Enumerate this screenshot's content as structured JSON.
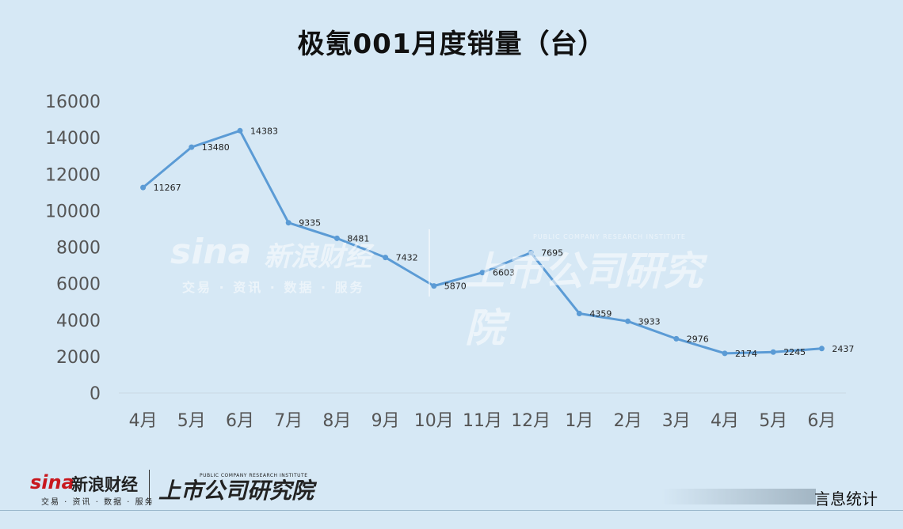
{
  "chart_data": {
    "type": "line",
    "title": "极氪001月度销量（台）",
    "categories": [
      "4月",
      "5月",
      "6月",
      "7月",
      "8月",
      "9月",
      "10月",
      "11月",
      "12月",
      "1月",
      "2月",
      "3月",
      "4月",
      "5月",
      "6月"
    ],
    "series": [
      {
        "values": [
          11267,
          13480,
          14383,
          9335,
          8481,
          7432,
          5870,
          6603,
          7695,
          4359,
          3933,
          2976,
          2174,
          2245,
          2437
        ]
      }
    ],
    "ylim": [
      0,
      16000
    ],
    "yticks": [
      0,
      2000,
      4000,
      6000,
      8000,
      10000,
      12000,
      14000,
      16000
    ],
    "xlabel": "",
    "ylabel": "",
    "grid": false,
    "data_labels": true,
    "line_color": "#5b9bd5"
  },
  "watermark": {
    "sina": "sina",
    "sina_cn": "新浪财经",
    "sina_sub": "交易 · 资讯 · 数据 · 服务",
    "institute": "上市公司研究院",
    "institute_en": "PUBLIC COMPANY RESEARCH INSTITUTE"
  },
  "footer": {
    "sina": "sina",
    "sina_cn": "新浪财经",
    "sina_sub": "交易 · 资讯 · 数据 · 服务",
    "institute": "上市公司研究院",
    "institute_en": "PUBLIC COMPANY RESEARCH INSTITUTE",
    "source": "言息统计"
  },
  "colors": {
    "background": "#d6e8f5",
    "line": "#5b9bd5",
    "sina_red": "#c8181e"
  }
}
